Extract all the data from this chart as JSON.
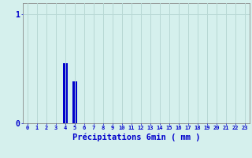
{
  "hours": [
    0,
    1,
    2,
    3,
    4,
    5,
    6,
    7,
    8,
    9,
    10,
    11,
    12,
    13,
    14,
    15,
    16,
    17,
    18,
    19,
    20,
    21,
    22,
    23
  ],
  "values": [
    0,
    0,
    0,
    0,
    0.55,
    0.38,
    0,
    0,
    0,
    0,
    0,
    0,
    0,
    0,
    0,
    0,
    0,
    0,
    0,
    0,
    0,
    0,
    0,
    0
  ],
  "bar_color": "#0000cc",
  "background_color": "#d5f0ed",
  "grid_color": "#b8d8d4",
  "xlabel": "Précipitations 6min ( mm )",
  "xlabel_color": "#0000cc",
  "xlabel_fontsize": 7.5,
  "ytick_labels": [
    "0",
    "1"
  ],
  "ytick_values": [
    0,
    1
  ],
  "ylim": [
    0,
    1.1
  ],
  "xlim": [
    -0.5,
    23.5
  ],
  "tick_color": "#0000cc",
  "axis_color": "#888888",
  "bar_width": 0.5
}
